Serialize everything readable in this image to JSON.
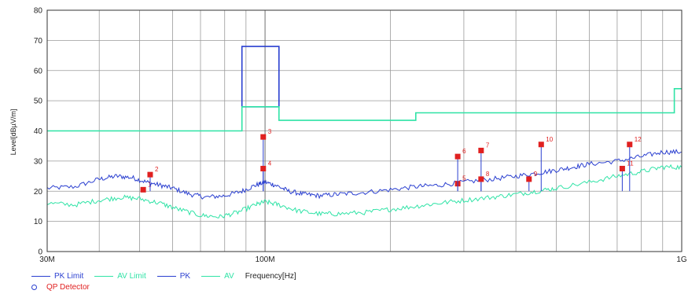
{
  "chart_data": {
    "type": "line",
    "ylabel": "Level[dBµV/m]",
    "xlabel": "Frequency[Hz]",
    "x_scale": "log",
    "xlim": [
      30,
      1000
    ],
    "ylim": [
      0,
      80
    ],
    "grid": true,
    "x_ticks": [
      {
        "value": 30,
        "label": "30M"
      },
      {
        "value": 100,
        "label": "100M"
      },
      {
        "value": 1000,
        "label": "1G"
      }
    ],
    "y_ticks": [
      0,
      10,
      20,
      30,
      40,
      50,
      60,
      70,
      80
    ],
    "x_minor_grid": [
      40,
      50,
      60,
      70,
      80,
      90,
      200,
      300,
      400,
      500,
      600,
      700,
      800,
      900
    ],
    "series": [
      {
        "name": "PK Limit",
        "color": "#2a3fd0",
        "points": [
          [
            88,
            48
          ],
          [
            88,
            68
          ],
          [
            108,
            68
          ],
          [
            108,
            48
          ],
          [
            88,
            48
          ]
        ]
      },
      {
        "name": "AV Limit",
        "color": "#2fe3a6",
        "points": [
          [
            30,
            40
          ],
          [
            88,
            40
          ],
          [
            88,
            48
          ],
          [
            108,
            48
          ],
          [
            108,
            43.5
          ],
          [
            230,
            43.5
          ],
          [
            230,
            46
          ],
          [
            960,
            46
          ],
          [
            960,
            54
          ],
          [
            1000,
            54
          ]
        ]
      },
      {
        "name": "PK",
        "color": "#2a3fd0",
        "points": [
          [
            30,
            21
          ],
          [
            35,
            21.5
          ],
          [
            40,
            24
          ],
          [
            44,
            25
          ],
          [
            48,
            24.5
          ],
          [
            52,
            23
          ],
          [
            56,
            22
          ],
          [
            60,
            21
          ],
          [
            66,
            19
          ],
          [
            72,
            18
          ],
          [
            80,
            18.5
          ],
          [
            88,
            20
          ],
          [
            95,
            22
          ],
          [
            100,
            23
          ],
          [
            106,
            22
          ],
          [
            114,
            20
          ],
          [
            124,
            19
          ],
          [
            135,
            18.5
          ],
          [
            150,
            19
          ],
          [
            170,
            19.5
          ],
          [
            200,
            20.5
          ],
          [
            230,
            21.5
          ],
          [
            260,
            22
          ],
          [
            300,
            23
          ],
          [
            350,
            24
          ],
          [
            400,
            25
          ],
          [
            450,
            26
          ],
          [
            500,
            27
          ],
          [
            550,
            28
          ],
          [
            600,
            29
          ],
          [
            700,
            30
          ],
          [
            800,
            31.5
          ],
          [
            900,
            33
          ],
          [
            1000,
            33
          ]
        ]
      },
      {
        "name": "AV",
        "color": "#2fe3a6",
        "points": [
          [
            30,
            16
          ],
          [
            35,
            15.5
          ],
          [
            40,
            17
          ],
          [
            45,
            18
          ],
          [
            50,
            17.5
          ],
          [
            56,
            16
          ],
          [
            62,
            14
          ],
          [
            70,
            12
          ],
          [
            78,
            11.5
          ],
          [
            86,
            13
          ],
          [
            95,
            15.5
          ],
          [
            100,
            16.5
          ],
          [
            108,
            15.5
          ],
          [
            120,
            13.5
          ],
          [
            135,
            12.5
          ],
          [
            150,
            12.5
          ],
          [
            175,
            13
          ],
          [
            200,
            14
          ],
          [
            230,
            15
          ],
          [
            260,
            16
          ],
          [
            300,
            17
          ],
          [
            350,
            18
          ],
          [
            400,
            19
          ],
          [
            450,
            20
          ],
          [
            500,
            21
          ],
          [
            600,
            23
          ],
          [
            700,
            25
          ],
          [
            800,
            26.5
          ],
          [
            900,
            28
          ],
          [
            1000,
            28
          ]
        ]
      }
    ],
    "qp_detector": {
      "name": "QP Detector",
      "color": "#e02020",
      "markers": [
        {
          "id": "1",
          "x": 51,
          "y": 20.5
        },
        {
          "id": "2",
          "x": 53,
          "y": 25.5
        },
        {
          "id": "3",
          "x": 99,
          "y": 38
        },
        {
          "id": "4",
          "x": 99,
          "y": 27.5
        },
        {
          "id": "5",
          "x": 290,
          "y": 22.5
        },
        {
          "id": "6",
          "x": 290,
          "y": 31.5
        },
        {
          "id": "7",
          "x": 330,
          "y": 33.5
        },
        {
          "id": "8",
          "x": 330,
          "y": 24
        },
        {
          "id": "9",
          "x": 430,
          "y": 24
        },
        {
          "id": "10",
          "x": 460,
          "y": 35.5
        },
        {
          "id": "11",
          "x": 720,
          "y": 27.5
        },
        {
          "id": "12",
          "x": 750,
          "y": 35.5
        }
      ]
    },
    "legend": [
      {
        "label": "PK Limit",
        "color": "#2a3fd0",
        "style": "line"
      },
      {
        "label": "AV Limit",
        "color": "#2fe3a6",
        "style": "line"
      },
      {
        "label": "PK",
        "color": "#2a3fd0",
        "style": "line"
      },
      {
        "label": "AV",
        "color": "#2fe3a6",
        "style": "line"
      },
      {
        "label": "QP Detector",
        "color": "#e02020",
        "style": "circle"
      }
    ],
    "legend_position": "bottom-left"
  }
}
